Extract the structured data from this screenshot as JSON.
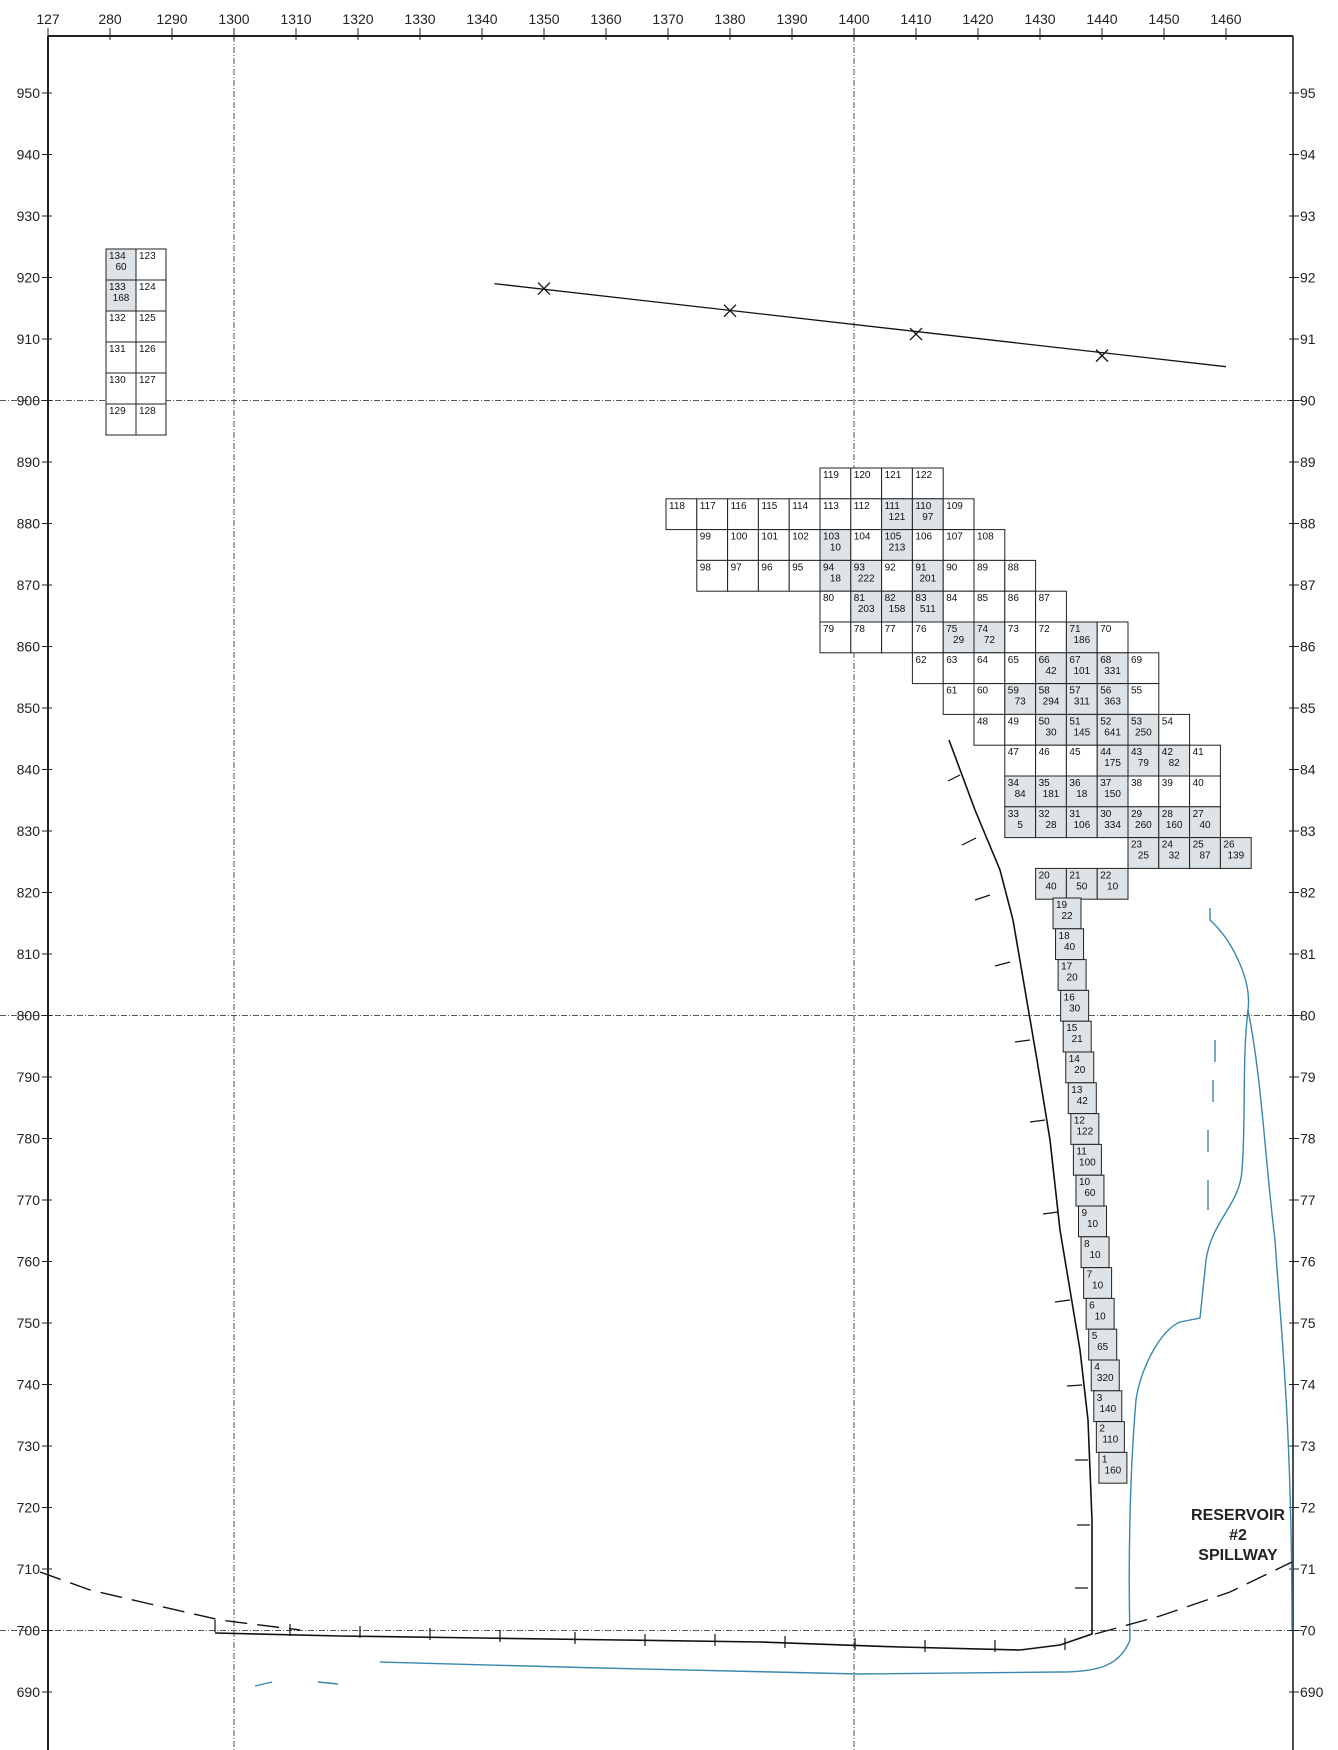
{
  "x_axis": {
    "labels": [
      "127",
      "280",
      "1290",
      "1300",
      "1310",
      "1320",
      "1330",
      "1340",
      "1350",
      "1360",
      "1370",
      "1380",
      "1390",
      "1400",
      "1410",
      "1420",
      "1430",
      "1440",
      "1450",
      "1460"
    ],
    "min": 1270,
    "max": 1460
  },
  "y_axis_left": {
    "labels": [
      "950",
      "940",
      "930",
      "920",
      "910",
      "900",
      "890",
      "880",
      "870",
      "860",
      "850",
      "840",
      "830",
      "820",
      "810",
      "800",
      "790",
      "780",
      "770",
      "760",
      "750",
      "740",
      "730",
      "720",
      "710",
      "700",
      "690"
    ]
  },
  "y_axis_right": {
    "labels": [
      "95",
      "94",
      "93",
      "92",
      "91",
      "90",
      "89",
      "88",
      "87",
      "86",
      "85",
      "84",
      "83",
      "82",
      "81",
      "80",
      "79",
      "78",
      "77",
      "76",
      "75",
      "74",
      "73",
      "72",
      "71",
      "70",
      "690"
    ]
  },
  "grid_lines_x": [
    1300,
    1400
  ],
  "grid_lines_y": [
    900,
    800,
    700
  ],
  "colors": {
    "axis": "#222222",
    "grid": "#555555",
    "cell_fill": "#dde3e6",
    "line": "#111111",
    "water": "#3a87ad"
  },
  "survey_line": {
    "points": [
      [
        1342,
        919
      ],
      [
        1460,
        905.5
      ]
    ],
    "markers": [
      [
        1350,
        918.2
      ],
      [
        1380,
        914.6
      ],
      [
        1410,
        910.8
      ],
      [
        1440,
        907.3
      ]
    ]
  },
  "annotation": {
    "line1": "RESERVOIR",
    "line2": "#2",
    "line3": "SPILLWAY"
  },
  "cells": [
    {
      "id": "134",
      "v": "60",
      "c": 0,
      "r": 0,
      "g": "A"
    },
    {
      "id": "123",
      "v": "",
      "c": 1,
      "r": 0,
      "g": "A"
    },
    {
      "id": "133",
      "v": "168",
      "c": 0,
      "r": 1,
      "g": "A"
    },
    {
      "id": "124",
      "v": "",
      "c": 1,
      "r": 1,
      "g": "A"
    },
    {
      "id": "132",
      "v": "",
      "c": 0,
      "r": 2,
      "g": "A"
    },
    {
      "id": "125",
      "v": "",
      "c": 1,
      "r": 2,
      "g": "A"
    },
    {
      "id": "131",
      "v": "",
      "c": 0,
      "r": 3,
      "g": "A"
    },
    {
      "id": "126",
      "v": "",
      "c": 1,
      "r": 3,
      "g": "A"
    },
    {
      "id": "130",
      "v": "",
      "c": 0,
      "r": 4,
      "g": "A"
    },
    {
      "id": "127",
      "v": "",
      "c": 1,
      "r": 4,
      "g": "A"
    },
    {
      "id": "129",
      "v": "",
      "c": 0,
      "r": 5,
      "g": "A"
    },
    {
      "id": "128",
      "v": "",
      "c": 1,
      "r": 5,
      "g": "A"
    },
    {
      "id": "119",
      "v": "",
      "c": 5,
      "r": 0
    },
    {
      "id": "120",
      "v": "",
      "c": 6,
      "r": 0
    },
    {
      "id": "121",
      "v": "",
      "c": 7,
      "r": 0
    },
    {
      "id": "122",
      "v": "",
      "c": 8,
      "r": 0
    },
    {
      "id": "118",
      "v": "",
      "c": 0,
      "r": 1
    },
    {
      "id": "117",
      "v": "",
      "c": 1,
      "r": 1
    },
    {
      "id": "116",
      "v": "",
      "c": 2,
      "r": 1
    },
    {
      "id": "115",
      "v": "",
      "c": 3,
      "r": 1
    },
    {
      "id": "114",
      "v": "",
      "c": 4,
      "r": 1
    },
    {
      "id": "113",
      "v": "",
      "c": 5,
      "r": 1
    },
    {
      "id": "112",
      "v": "",
      "c": 6,
      "r": 1
    },
    {
      "id": "111",
      "v": "121",
      "c": 7,
      "r": 1
    },
    {
      "id": "110",
      "v": "97",
      "c": 8,
      "r": 1
    },
    {
      "id": "109",
      "v": "",
      "c": 9,
      "r": 1
    },
    {
      "id": "99",
      "v": "",
      "c": 1,
      "r": 2
    },
    {
      "id": "100",
      "v": "",
      "c": 2,
      "r": 2
    },
    {
      "id": "101",
      "v": "",
      "c": 3,
      "r": 2
    },
    {
      "id": "102",
      "v": "",
      "c": 4,
      "r": 2
    },
    {
      "id": "103",
      "v": "10",
      "c": 5,
      "r": 2
    },
    {
      "id": "104",
      "v": "",
      "c": 6,
      "r": 2
    },
    {
      "id": "105",
      "v": "213",
      "c": 7,
      "r": 2
    },
    {
      "id": "106",
      "v": "",
      "c": 8,
      "r": 2
    },
    {
      "id": "107",
      "v": "",
      "c": 9,
      "r": 2
    },
    {
      "id": "108",
      "v": "",
      "c": 10,
      "r": 2
    },
    {
      "id": "98",
      "v": "",
      "c": 1,
      "r": 3
    },
    {
      "id": "97",
      "v": "",
      "c": 2,
      "r": 3
    },
    {
      "id": "96",
      "v": "",
      "c": 3,
      "r": 3
    },
    {
      "id": "95",
      "v": "",
      "c": 4,
      "r": 3
    },
    {
      "id": "94",
      "v": "18",
      "c": 5,
      "r": 3
    },
    {
      "id": "93",
      "v": "222",
      "c": 6,
      "r": 3
    },
    {
      "id": "92",
      "v": "",
      "c": 7,
      "r": 3
    },
    {
      "id": "91",
      "v": "201",
      "c": 8,
      "r": 3
    },
    {
      "id": "90",
      "v": "",
      "c": 9,
      "r": 3
    },
    {
      "id": "89",
      "v": "",
      "c": 10,
      "r": 3
    },
    {
      "id": "88",
      "v": "",
      "c": 11,
      "r": 3
    },
    {
      "id": "80",
      "v": "",
      "c": 5,
      "r": 4
    },
    {
      "id": "81",
      "v": "203",
      "c": 6,
      "r": 4
    },
    {
      "id": "82",
      "v": "158",
      "c": 7,
      "r": 4
    },
    {
      "id": "83",
      "v": "511",
      "c": 8,
      "r": 4
    },
    {
      "id": "84",
      "v": "",
      "c": 9,
      "r": 4
    },
    {
      "id": "85",
      "v": "",
      "c": 10,
      "r": 4
    },
    {
      "id": "86",
      "v": "",
      "c": 11,
      "r": 4
    },
    {
      "id": "87",
      "v": "",
      "c": 12,
      "r": 4
    },
    {
      "id": "79",
      "v": "",
      "c": 5,
      "r": 5
    },
    {
      "id": "78",
      "v": "",
      "c": 6,
      "r": 5
    },
    {
      "id": "77",
      "v": "",
      "c": 7,
      "r": 5
    },
    {
      "id": "76",
      "v": "",
      "c": 8,
      "r": 5
    },
    {
      "id": "75",
      "v": "29",
      "c": 9,
      "r": 5
    },
    {
      "id": "74",
      "v": "72",
      "c": 10,
      "r": 5
    },
    {
      "id": "73",
      "v": "",
      "c": 11,
      "r": 5
    },
    {
      "id": "72",
      "v": "",
      "c": 12,
      "r": 5
    },
    {
      "id": "71",
      "v": "186",
      "c": 13,
      "r": 5
    },
    {
      "id": "70",
      "v": "",
      "c": 14,
      "r": 5
    },
    {
      "id": "62",
      "v": "",
      "c": 8,
      "r": 6
    },
    {
      "id": "63",
      "v": "",
      "c": 9,
      "r": 6
    },
    {
      "id": "64",
      "v": "",
      "c": 10,
      "r": 6
    },
    {
      "id": "65",
      "v": "",
      "c": 11,
      "r": 6
    },
    {
      "id": "66",
      "v": "42",
      "c": 12,
      "r": 6
    },
    {
      "id": "67",
      "v": "101",
      "c": 13,
      "r": 6
    },
    {
      "id": "68",
      "v": "331",
      "c": 14,
      "r": 6
    },
    {
      "id": "69",
      "v": "",
      "c": 15,
      "r": 6
    },
    {
      "id": "61",
      "v": "",
      "c": 9,
      "r": 7
    },
    {
      "id": "60",
      "v": "",
      "c": 10,
      "r": 7
    },
    {
      "id": "59",
      "v": "73",
      "c": 11,
      "r": 7
    },
    {
      "id": "58",
      "v": "294",
      "c": 12,
      "r": 7
    },
    {
      "id": "57",
      "v": "311",
      "c": 13,
      "r": 7
    },
    {
      "id": "56",
      "v": "363",
      "c": 14,
      "r": 7
    },
    {
      "id": "55",
      "v": "",
      "c": 15,
      "r": 7
    },
    {
      "id": "48",
      "v": "",
      "c": 10,
      "r": 8
    },
    {
      "id": "49",
      "v": "",
      "c": 11,
      "r": 8
    },
    {
      "id": "50",
      "v": "30",
      "c": 12,
      "r": 8
    },
    {
      "id": "51",
      "v": "145",
      "c": 13,
      "r": 8
    },
    {
      "id": "52",
      "v": "641",
      "c": 14,
      "r": 8
    },
    {
      "id": "53",
      "v": "250",
      "c": 15,
      "r": 8
    },
    {
      "id": "54",
      "v": "",
      "c": 16,
      "r": 8
    },
    {
      "id": "47",
      "v": "",
      "c": 11,
      "r": 9
    },
    {
      "id": "46",
      "v": "",
      "c": 12,
      "r": 9
    },
    {
      "id": "45",
      "v": "",
      "c": 13,
      "r": 9
    },
    {
      "id": "44",
      "v": "175",
      "c": 14,
      "r": 9
    },
    {
      "id": "43",
      "v": "79",
      "c": 15,
      "r": 9
    },
    {
      "id": "42",
      "v": "82",
      "c": 16,
      "r": 9
    },
    {
      "id": "41",
      "v": "",
      "c": 17,
      "r": 9
    },
    {
      "id": "34",
      "v": "84",
      "c": 11,
      "r": 10
    },
    {
      "id": "35",
      "v": "181",
      "c": 12,
      "r": 10
    },
    {
      "id": "36",
      "v": "18",
      "c": 13,
      "r": 10
    },
    {
      "id": "37",
      "v": "150",
      "c": 14,
      "r": 10
    },
    {
      "id": "38",
      "v": "",
      "c": 15,
      "r": 10
    },
    {
      "id": "39",
      "v": "",
      "c": 16,
      "r": 10
    },
    {
      "id": "40",
      "v": "",
      "c": 17,
      "r": 10
    },
    {
      "id": "33",
      "v": "5",
      "c": 11,
      "r": 11
    },
    {
      "id": "32",
      "v": "28",
      "c": 12,
      "r": 11
    },
    {
      "id": "31",
      "v": "106",
      "c": 13,
      "r": 11
    },
    {
      "id": "30",
      "v": "334",
      "c": 14,
      "r": 11
    },
    {
      "id": "29",
      "v": "260",
      "c": 15,
      "r": 11
    },
    {
      "id": "28",
      "v": "160",
      "c": 16,
      "r": 11
    },
    {
      "id": "27",
      "v": "40",
      "c": 17,
      "r": 11
    },
    {
      "id": "23",
      "v": "25",
      "c": 15,
      "r": 12
    },
    {
      "id": "24",
      "v": "32",
      "c": 16,
      "r": 12
    },
    {
      "id": "25",
      "v": "87",
      "c": 17,
      "r": 12
    },
    {
      "id": "26",
      "v": "139",
      "c": 18,
      "r": 12
    },
    {
      "id": "20",
      "v": "40",
      "c": 12,
      "r": 13
    },
    {
      "id": "21",
      "v": "50",
      "c": 13,
      "r": 13
    },
    {
      "id": "22",
      "v": "10",
      "c": 14,
      "r": 13
    }
  ],
  "chain": [
    {
      "id": "19",
      "v": "22"
    },
    {
      "id": "18",
      "v": "40"
    },
    {
      "id": "17",
      "v": "20"
    },
    {
      "id": "16",
      "v": "30"
    },
    {
      "id": "15",
      "v": "21"
    },
    {
      "id": "14",
      "v": "20"
    },
    {
      "id": "13",
      "v": "42"
    },
    {
      "id": "12",
      "v": "122"
    },
    {
      "id": "11",
      "v": "100"
    },
    {
      "id": "10",
      "v": "60"
    },
    {
      "id": "9",
      "v": "10"
    },
    {
      "id": "8",
      "v": "10"
    },
    {
      "id": "7",
      "v": "10"
    },
    {
      "id": "6",
      "v": "10"
    },
    {
      "id": "5",
      "v": "65"
    },
    {
      "id": "4",
      "v": "320"
    },
    {
      "id": "3",
      "v": "140"
    },
    {
      "id": "2",
      "v": "110"
    },
    {
      "id": "1",
      "v": "160"
    }
  ]
}
